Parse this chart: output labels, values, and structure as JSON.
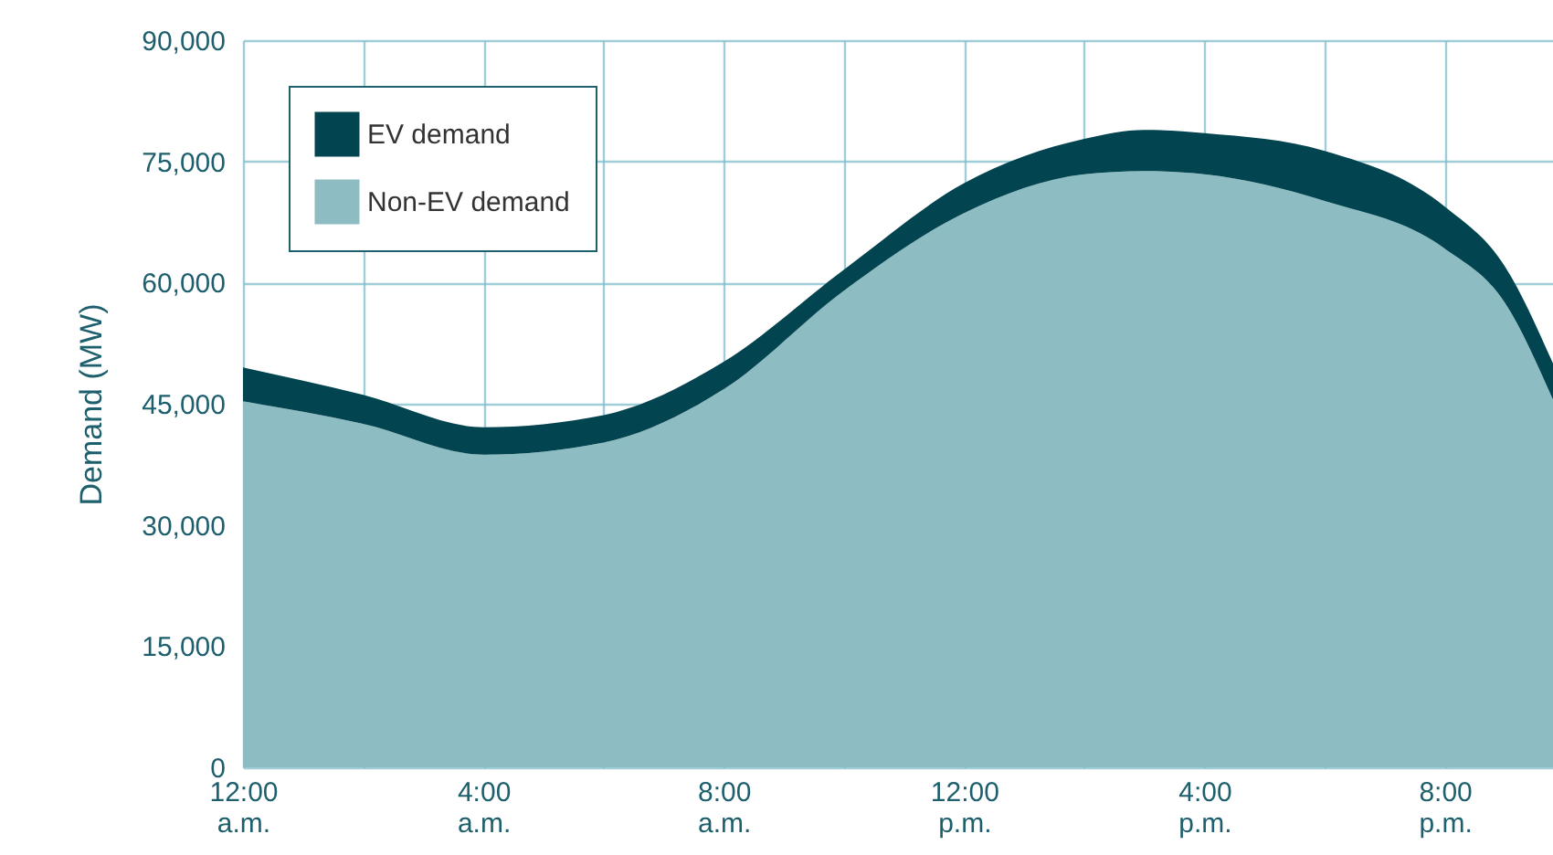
{
  "chart_data": {
    "type": "area",
    "stacked": true,
    "ylabel": "Demand (MW)",
    "x": [
      0,
      2,
      4,
      6,
      8,
      10,
      12,
      14,
      15,
      16,
      18,
      20,
      21,
      21.8
    ],
    "series": [
      {
        "name": "Non-EV demand",
        "color": "#8dbdc3",
        "values": [
          45300,
          42500,
          38700,
          40200,
          46800,
          59000,
          68600,
          73400,
          73800,
          73400,
          70100,
          64200,
          57500,
          45500
        ]
      },
      {
        "name": "EV demand",
        "color": "#02444f",
        "values": [
          4200,
          3600,
          3400,
          3400,
          3400,
          2600,
          3700,
          4400,
          5100,
          5100,
          6200,
          5200,
          4500,
          4500
        ]
      }
    ],
    "xlim": [
      0,
      21.8
    ],
    "xticks": [
      {
        "value": 0,
        "label": "12:00\na.m."
      },
      {
        "value": 2,
        "label": null
      },
      {
        "value": 4,
        "label": "4:00\na.m."
      },
      {
        "value": 6,
        "label": null
      },
      {
        "value": 8,
        "label": "8:00\na.m."
      },
      {
        "value": 10,
        "label": null
      },
      {
        "value": 12,
        "label": "12:00\np.m."
      },
      {
        "value": 14,
        "label": null
      },
      {
        "value": 16,
        "label": "4:00\np.m."
      },
      {
        "value": 18,
        "label": null
      },
      {
        "value": 20,
        "label": "8:00\np.m."
      }
    ],
    "ylim": [
      0,
      90000
    ],
    "yticks": [
      {
        "value": 0,
        "label": "0"
      },
      {
        "value": 15000,
        "label": "15,000"
      },
      {
        "value": 30000,
        "label": "30,000"
      },
      {
        "value": 45000,
        "label": "45,000"
      },
      {
        "value": 60000,
        "label": "60,000"
      },
      {
        "value": 75000,
        "label": "75,000"
      },
      {
        "value": 90000,
        "label": "90,000"
      }
    ],
    "grid": true,
    "legend": "top left"
  }
}
